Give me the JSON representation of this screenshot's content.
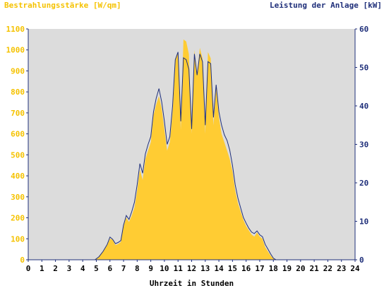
{
  "chart_data": {
    "type": "area",
    "left_axis_title": "Bestrahlungsstärke [W/qm]",
    "right_axis_title": "Leistung der Anlage [kW]",
    "xlabel": "Uhrzeit in Stunden",
    "xlim": [
      0,
      24
    ],
    "left_ylim": [
      0,
      1100
    ],
    "right_ylim": [
      0,
      60
    ],
    "x_ticks": [
      "0",
      "1",
      "2",
      "3",
      "4",
      "5",
      "6",
      "7",
      "8",
      "9",
      "10",
      "11",
      "12",
      "13",
      "14",
      "15",
      "16",
      "17",
      "18",
      "19",
      "20",
      "21",
      "22",
      "23",
      "24"
    ],
    "left_ticks": [
      "0",
      "100",
      "200",
      "300",
      "400",
      "500",
      "600",
      "700",
      "800",
      "900",
      "1000",
      "1100"
    ],
    "right_ticks": [
      "0",
      "10",
      "20",
      "30",
      "40",
      "50",
      "60"
    ],
    "grid": false,
    "plot_background": "#dcdcdc",
    "series": [
      {
        "name": "Bestrahlungsstärke [W/qm]",
        "axis": "left",
        "style": "filled-area",
        "color": "#ffcc33",
        "x": [
          0,
          4.9,
          5.2,
          5.5,
          5.8,
          6.0,
          6.2,
          6.4,
          6.6,
          6.8,
          7.0,
          7.2,
          7.4,
          7.6,
          7.8,
          8.0,
          8.2,
          8.4,
          8.6,
          8.8,
          9.0,
          9.2,
          9.4,
          9.6,
          9.8,
          10.0,
          10.2,
          10.4,
          10.6,
          10.8,
          11.0,
          11.2,
          11.4,
          11.6,
          11.8,
          12.0,
          12.2,
          12.4,
          12.6,
          12.8,
          13.0,
          13.2,
          13.4,
          13.6,
          13.8,
          14.0,
          14.2,
          14.4,
          14.6,
          14.8,
          15.0,
          15.2,
          15.4,
          15.6,
          15.8,
          16.0,
          16.2,
          16.4,
          16.6,
          16.8,
          17.0,
          17.2,
          17.4,
          17.6,
          17.8,
          18.0,
          18.2,
          18.4,
          18.6,
          18.8,
          19.0,
          19.2,
          19.4,
          19.6,
          19.8,
          20.0,
          20.2,
          24
        ],
        "y": [
          0,
          0,
          15,
          40,
          70,
          100,
          95,
          70,
          75,
          85,
          160,
          200,
          180,
          210,
          250,
          330,
          430,
          380,
          480,
          520,
          560,
          690,
          740,
          780,
          720,
          620,
          520,
          560,
          700,
          950,
          990,
          620,
          1050,
          1040,
          980,
          600,
          1000,
          880,
          1010,
          960,
          600,
          990,
          960,
          640,
          820,
          680,
          600,
          560,
          520,
          480,
          420,
          330,
          270,
          230,
          190,
          160,
          140,
          120,
          110,
          130,
          110,
          100,
          60,
          40,
          20,
          5,
          0,
          0,
          0,
          0,
          0,
          0,
          0,
          0,
          0,
          0,
          0,
          0
        ]
      },
      {
        "name": "Leistung der Anlage [kW]",
        "axis": "right",
        "style": "line",
        "color": "#1f2f7a",
        "x": [
          0,
          4.9,
          5.2,
          5.5,
          5.8,
          6.0,
          6.2,
          6.4,
          6.6,
          6.8,
          7.0,
          7.2,
          7.4,
          7.6,
          7.8,
          8.0,
          8.2,
          8.4,
          8.6,
          8.8,
          9.0,
          9.2,
          9.4,
          9.6,
          9.8,
          10.0,
          10.2,
          10.4,
          10.6,
          10.8,
          11.0,
          11.2,
          11.4,
          11.6,
          11.8,
          12.0,
          12.2,
          12.4,
          12.6,
          12.8,
          13.0,
          13.2,
          13.4,
          13.6,
          13.8,
          14.0,
          14.2,
          14.4,
          14.6,
          14.8,
          15.0,
          15.2,
          15.4,
          15.6,
          15.8,
          16.0,
          16.2,
          16.4,
          16.6,
          16.8,
          17.0,
          17.2,
          17.4,
          17.6,
          17.8,
          18.0,
          18.2,
          18.4,
          18.6,
          18.8,
          19.0,
          19.2,
          19.4,
          19.6,
          19.8,
          20.0,
          20.2,
          24
        ],
        "y": [
          0,
          0,
          0.8,
          2.2,
          4,
          5.9,
          5.3,
          4.2,
          4.5,
          5,
          9,
          11.5,
          10.5,
          12.5,
          15,
          19.5,
          25,
          22.5,
          27.5,
          30,
          32,
          38.5,
          42,
          44.5,
          41,
          36,
          30,
          32,
          40,
          52,
          54,
          36,
          52.5,
          52,
          49.5,
          34,
          53.5,
          48,
          53.5,
          51.5,
          35,
          51.5,
          51,
          37,
          45.5,
          38.5,
          35,
          32.5,
          31,
          28.5,
          24.5,
          19.5,
          16,
          13.5,
          11,
          9.5,
          8.2,
          7.2,
          6.8,
          7.5,
          6.5,
          6,
          4,
          2.8,
          1.5,
          0.4,
          0,
          0,
          0,
          0,
          0,
          0,
          0,
          0,
          0,
          0,
          0,
          0
        ]
      }
    ]
  }
}
